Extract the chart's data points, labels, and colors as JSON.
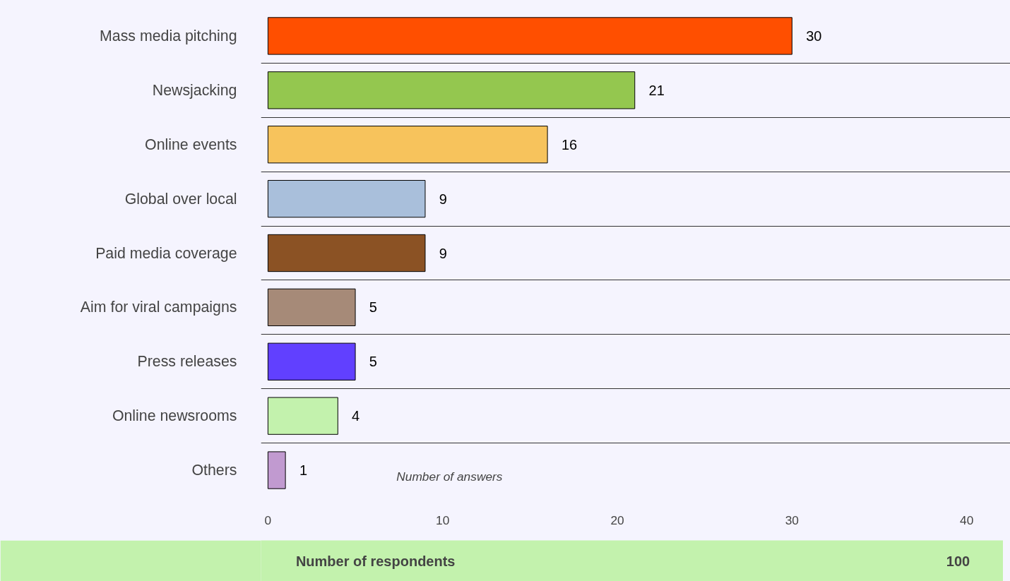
{
  "chart_data": {
    "type": "bar",
    "orientation": "horizontal",
    "categories": [
      "Mass media pitching",
      "Newsjacking",
      "Online events",
      "Global over local",
      "Paid media coverage",
      "Aim for viral campaigns",
      "Press releases",
      "Online newsrooms",
      "Others"
    ],
    "values": [
      30,
      21,
      16,
      9,
      9,
      5,
      5,
      4,
      1
    ],
    "colors": [
      "#ff4f00",
      "#94c74f",
      "#f7c35c",
      "#a9bfdb",
      "#8b5224",
      "#a68a78",
      "#6140ff",
      "#c3f2ad",
      "#c19ad0"
    ],
    "data_labels": true,
    "xlabel": "Number of answers",
    "xlim": [
      -0.4,
      42.5
    ],
    "xticks": [
      0,
      10,
      20,
      30,
      40
    ],
    "grid": "y",
    "annotations": [
      "Number of respondents",
      "100"
    ]
  }
}
